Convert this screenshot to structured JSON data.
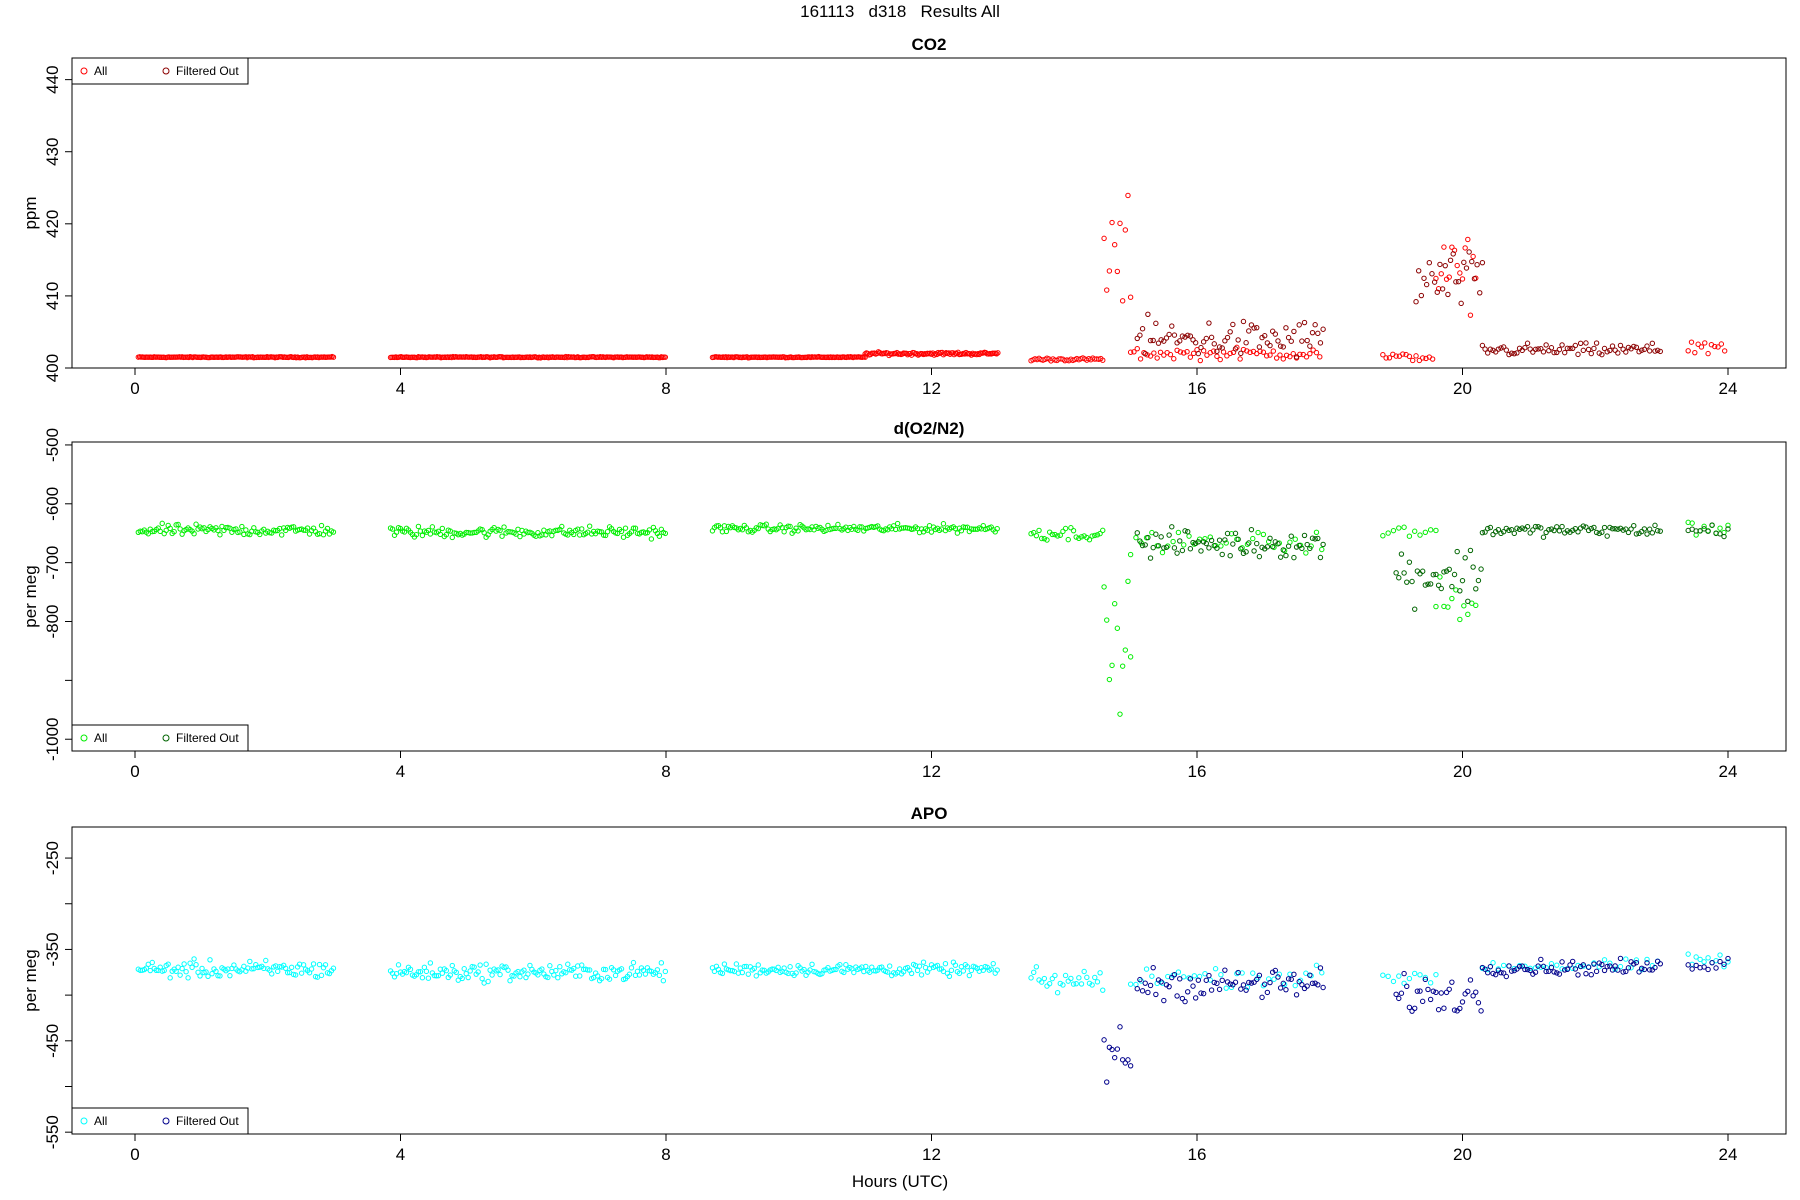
{
  "figure": {
    "title": "161113   d318   Results All",
    "xlabel": "Hours (UTC)"
  },
  "chart_data": [
    {
      "type": "scatter",
      "title": "CO2",
      "xlabel": "",
      "ylabel": "ppm",
      "xlim": [
        0,
        24
      ],
      "ylim": [
        400,
        443
      ],
      "xticks": [
        0,
        4,
        8,
        12,
        16,
        20,
        24
      ],
      "yticks": [
        400,
        410,
        420,
        430,
        440
      ],
      "legend": {
        "position": "top-left",
        "entries": [
          "All",
          "Filtered Out"
        ]
      },
      "series": [
        {
          "name": "All",
          "color": "#ff0000",
          "segments": [
            {
              "x": [
                0.05,
                3.0
              ],
              "base": 401.5,
              "noise": 0.1,
              "step": 0.02
            },
            {
              "x": [
                3.85,
                8.0
              ],
              "base": 401.5,
              "noise": 0.1,
              "step": 0.02
            },
            {
              "x": [
                8.7,
                11.0
              ],
              "base": 401.5,
              "noise": 0.1,
              "step": 0.02
            },
            {
              "x": [
                11.0,
                13.0
              ],
              "base": 402.0,
              "noise": 0.3,
              "step": 0.02
            },
            {
              "x": [
                13.5,
                14.6
              ],
              "base": 401.2,
              "noise": 0.3,
              "step": 0.03
            },
            {
              "x": [
                14.6,
                15.0
              ],
              "base": 415.0,
              "noise": 12.0,
              "step": 0.04
            },
            {
              "x": [
                15.0,
                17.9
              ],
              "base": 402.0,
              "noise": 1.2,
              "step": 0.05
            },
            {
              "x": [
                18.8,
                19.6
              ],
              "base": 401.5,
              "noise": 0.8,
              "step": 0.05
            },
            {
              "x": [
                19.6,
                20.2
              ],
              "base": 413.0,
              "noise": 7.0,
              "step": 0.04
            },
            {
              "x": [
                23.4,
                24.0
              ],
              "base": 403.0,
              "noise": 1.2,
              "step": 0.05
            }
          ]
        },
        {
          "name": "Filtered Out",
          "color": "#8b0000",
          "segments": [
            {
              "x": [
                15.1,
                17.9
              ],
              "base": 404.0,
              "noise": 4.0,
              "step": 0.04
            },
            {
              "x": [
                19.3,
                20.3
              ],
              "base": 412.0,
              "noise": 6.0,
              "step": 0.04
            },
            {
              "x": [
                20.3,
                23.0
              ],
              "base": 402.5,
              "noise": 1.3,
              "step": 0.04
            }
          ]
        }
      ]
    },
    {
      "type": "scatter",
      "title": "d(O2/N2)",
      "xlabel": "",
      "ylabel": "per meg",
      "xlim": [
        0,
        24
      ],
      "ylim": [
        -1020,
        -495
      ],
      "xticks": [
        0,
        4,
        8,
        12,
        16,
        20,
        24
      ],
      "yticks": [
        -1000,
        -900,
        -800,
        -700,
        -600,
        -500
      ],
      "ytick_labels": [
        "-1000",
        "",
        "-800",
        "-700",
        "-600",
        "-500"
      ],
      "legend": {
        "position": "bottom-left",
        "entries": [
          "All",
          "Filtered Out"
        ]
      },
      "series": [
        {
          "name": "All",
          "color": "#00ee00",
          "segments": [
            {
              "x": [
                0.05,
                3.0
              ],
              "base": -645,
              "noise": 14,
              "step": 0.03
            },
            {
              "x": [
                3.85,
                8.0
              ],
              "base": -648,
              "noise": 14,
              "step": 0.03
            },
            {
              "x": [
                8.7,
                13.0
              ],
              "base": -642,
              "noise": 10,
              "step": 0.03
            },
            {
              "x": [
                13.5,
                14.6
              ],
              "base": -650,
              "noise": 18,
              "step": 0.04
            },
            {
              "x": [
                14.6,
                15.0
              ],
              "base": -850,
              "noise": 160,
              "step": 0.04
            },
            {
              "x": [
                15.0,
                17.9
              ],
              "base": -665,
              "noise": 25,
              "step": 0.08
            },
            {
              "x": [
                18.8,
                19.6
              ],
              "base": -650,
              "noise": 20,
              "step": 0.08
            },
            {
              "x": [
                19.6,
                20.2
              ],
              "base": -760,
              "noise": 60,
              "step": 0.06
            },
            {
              "x": [
                23.4,
                24.0
              ],
              "base": -640,
              "noise": 18,
              "step": 0.06
            }
          ]
        },
        {
          "name": "Filtered Out",
          "color": "#006400",
          "segments": [
            {
              "x": [
                15.1,
                17.9
              ],
              "base": -668,
              "noise": 35,
              "step": 0.04
            },
            {
              "x": [
                19.0,
                20.3
              ],
              "base": -720,
              "noise": 70,
              "step": 0.04
            },
            {
              "x": [
                20.3,
                23.0
              ],
              "base": -645,
              "noise": 14,
              "step": 0.04
            },
            {
              "x": [
                23.4,
                24.0
              ],
              "base": -645,
              "noise": 15,
              "step": 0.06
            }
          ]
        }
      ]
    },
    {
      "type": "scatter",
      "title": "APO",
      "xlabel": "Hours (UTC)",
      "ylabel": "per meg",
      "xlim": [
        0,
        24
      ],
      "ylim": [
        -552,
        -216
      ],
      "xticks": [
        0,
        4,
        8,
        12,
        16,
        20,
        24
      ],
      "yticks": [
        -550,
        -500,
        -450,
        -400,
        -350,
        -300,
        -250
      ],
      "ytick_labels": [
        "-550",
        "",
        "-450",
        "",
        "-350",
        "",
        "-250"
      ],
      "legend": {
        "position": "bottom-left",
        "entries": [
          "All",
          "Filtered Out"
        ]
      },
      "series": [
        {
          "name": "All",
          "color": "#00ffff",
          "segments": [
            {
              "x": [
                0.05,
                3.0
              ],
              "base": -372,
              "noise": 14,
              "step": 0.03
            },
            {
              "x": [
                3.85,
                8.0
              ],
              "base": -375,
              "noise": 14,
              "step": 0.03
            },
            {
              "x": [
                8.7,
                13.0
              ],
              "base": -372,
              "noise": 10,
              "step": 0.03
            },
            {
              "x": [
                13.5,
                14.6
              ],
              "base": -385,
              "noise": 20,
              "step": 0.04
            },
            {
              "x": [
                15.0,
                17.9
              ],
              "base": -380,
              "noise": 16,
              "step": 0.08
            },
            {
              "x": [
                18.8,
                19.6
              ],
              "base": -380,
              "noise": 18,
              "step": 0.08
            },
            {
              "x": [
                20.3,
                23.0
              ],
              "base": -368,
              "noise": 10,
              "step": 0.08
            },
            {
              "x": [
                23.4,
                24.0
              ],
              "base": -362,
              "noise": 12,
              "step": 0.06
            }
          ]
        },
        {
          "name": "Filtered Out",
          "color": "#00008b",
          "segments": [
            {
              "x": [
                14.6,
                15.0
              ],
              "base": -470,
              "noise": 60,
              "step": 0.04
            },
            {
              "x": [
                15.1,
                17.9
              ],
              "base": -388,
              "noise": 25,
              "step": 0.04
            },
            {
              "x": [
                19.0,
                20.3
              ],
              "base": -400,
              "noise": 30,
              "step": 0.04
            },
            {
              "x": [
                20.3,
                23.0
              ],
              "base": -370,
              "noise": 12,
              "step": 0.04
            },
            {
              "x": [
                23.4,
                24.0
              ],
              "base": -365,
              "noise": 12,
              "step": 0.06
            }
          ]
        }
      ]
    }
  ]
}
